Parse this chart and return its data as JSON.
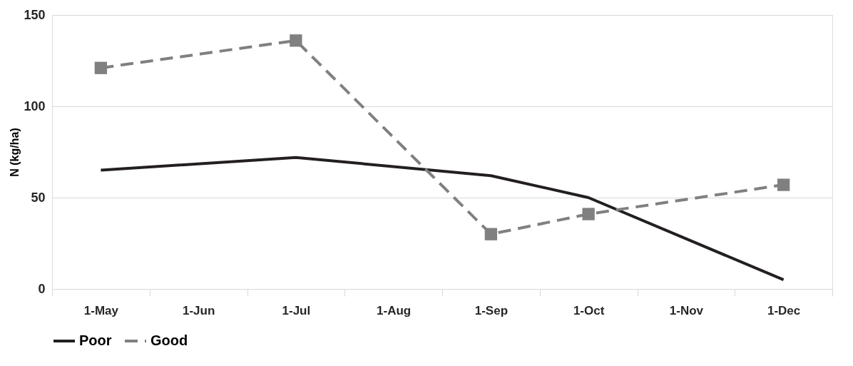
{
  "chart_data": {
    "type": "line",
    "ylabel": "N (kg/ha)",
    "categories": [
      "1-May",
      "1-Jun",
      "1-Jul",
      "1-Aug",
      "1-Sep",
      "1-Oct",
      "1-Nov",
      "1-Dec"
    ],
    "series": [
      {
        "name": "Poor",
        "color": "#231f20",
        "line_style": "solid",
        "marker": "none",
        "values": [
          65,
          null,
          72,
          null,
          62,
          50,
          null,
          5
        ]
      },
      {
        "name": "Good",
        "color": "#808080",
        "line_style": "dashed",
        "marker": "square",
        "values": [
          121,
          null,
          136,
          null,
          30,
          41,
          null,
          57
        ]
      }
    ],
    "ylim": [
      0,
      150
    ],
    "yticks": [
      0,
      50,
      100,
      150
    ],
    "grid": "y",
    "legend": "bottom"
  }
}
